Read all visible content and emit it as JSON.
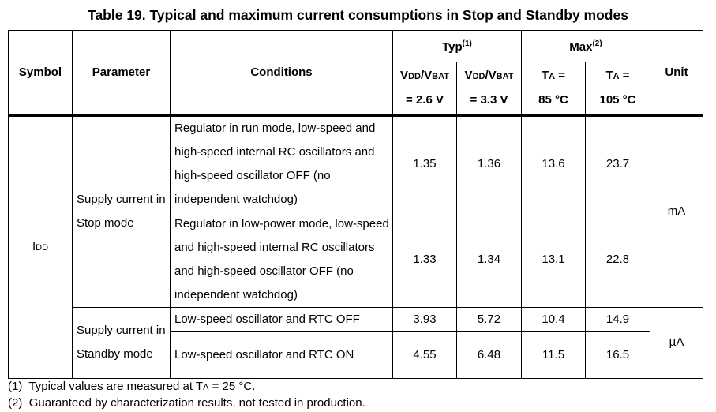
{
  "title": "Table 19. Typical and maximum current consumptions in Stop and Standby modes",
  "header": {
    "symbol": "Symbol",
    "parameter": "Parameter",
    "conditions": "Conditions",
    "typ": "Typ",
    "typ_note": "(1)",
    "max": "Max",
    "max_note": "(2)",
    "unit": "Unit",
    "typ_cols": [
      {
        "v1": "V",
        "s1": "DD",
        "mid": "/V",
        "s2": "BAT",
        "val": "= 2.6 V"
      },
      {
        "v1": "V",
        "s1": "DD",
        "mid": "/V",
        "s2": "BAT",
        "val": "= 3.3 V"
      }
    ],
    "max_cols": [
      {
        "t": "T",
        "s": "A",
        "eq": " =",
        "val": "85 °C"
      },
      {
        "t": "T",
        "s": "A",
        "eq": " =",
        "val": "105 °C"
      }
    ]
  },
  "symbol": {
    "main": "I",
    "sub": "DD"
  },
  "groups": [
    {
      "parameter": "Supply current in Stop mode",
      "unit": "mA",
      "rows": [
        {
          "conditions": "Regulator in run mode, low-speed and high-speed internal RC oscillators and high-speed oscillator OFF (no independent watchdog)",
          "values": [
            "1.35",
            "1.36",
            "13.6",
            "23.7"
          ]
        },
        {
          "conditions": "Regulator in low-power mode, low-speed and high-speed internal RC oscillators and high-speed oscillator OFF (no independent watchdog)",
          "values": [
            "1.33",
            "1.34",
            "13.1",
            "22.8"
          ]
        }
      ]
    },
    {
      "parameter": "Supply current in Standby mode",
      "unit": "µA",
      "rows": [
        {
          "conditions": "Low-speed oscillator and RTC OFF",
          "values": [
            "3.93",
            "5.72",
            "10.4",
            "14.9"
          ]
        },
        {
          "conditions": "Low-speed oscillator and RTC ON",
          "values": [
            "4.55",
            "6.48",
            "11.5",
            "16.5"
          ]
        }
      ]
    }
  ],
  "footnotes": [
    {
      "num": "(1)",
      "pre": "Typical values are measured at T",
      "sub": "A",
      "post": " = 25 °C."
    },
    {
      "num": "(2)",
      "pre": "Guaranteed by characterization results, not tested in production.",
      "sub": "",
      "post": ""
    }
  ]
}
